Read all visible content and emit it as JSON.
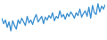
{
  "chart_data": {
    "type": "line",
    "values": [
      55,
      40,
      50,
      30,
      45,
      20,
      48,
      35,
      25,
      50,
      40,
      55,
      45,
      35,
      60,
      42,
      50,
      38,
      55,
      65,
      45,
      52,
      60,
      40,
      58,
      50,
      62,
      55,
      70,
      48,
      60,
      55,
      75,
      58,
      65,
      52,
      68,
      60,
      72,
      65,
      55,
      70,
      62,
      80,
      58,
      68,
      75,
      60,
      85,
      55,
      90,
      70,
      65,
      95,
      72,
      88,
      80,
      92
    ],
    "color": "#3a8fd0",
    "ylim": [
      0,
      100
    ],
    "grid": false,
    "tick_labels": false
  }
}
